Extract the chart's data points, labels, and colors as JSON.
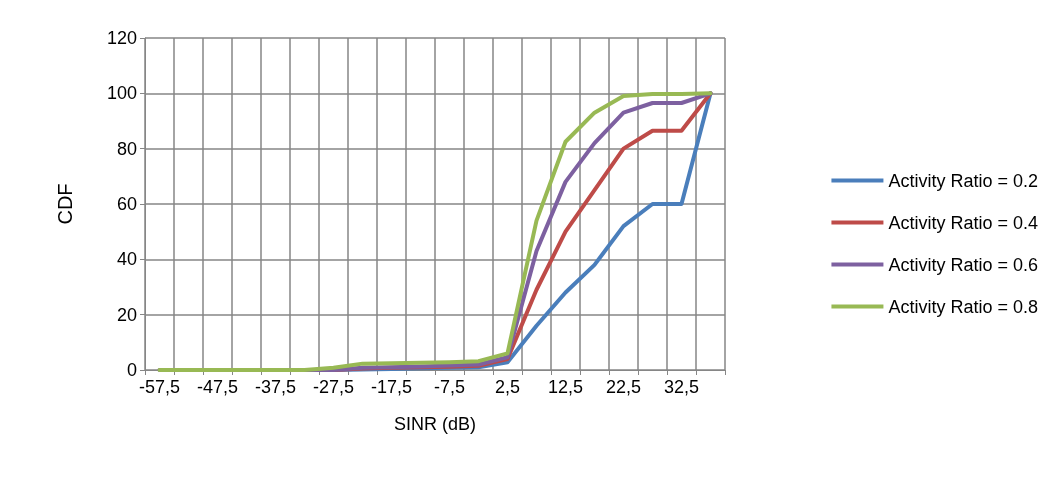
{
  "chart_data": {
    "type": "line",
    "xlabel": "SINR (dB)",
    "ylabel": "CDF",
    "categories": [
      "-57,5",
      null,
      "-47,5",
      null,
      "-37,5",
      null,
      "-27,5",
      null,
      "-17,5",
      null,
      "-7,5",
      null,
      "2,5",
      null,
      "12,5",
      null,
      "22,5",
      null,
      "32,5",
      null
    ],
    "series": [
      {
        "name": "Activity Ratio = 0.2",
        "color": "#4a7ebb",
        "values": [
          null,
          null,
          null,
          null,
          null,
          0,
          0,
          0.2,
          0.4,
          0.6,
          0.8,
          1,
          2.8,
          16,
          28,
          38,
          52,
          60,
          60,
          100
        ]
      },
      {
        "name": "Activity Ratio = 0.4",
        "color": "#be4b48",
        "values": [
          null,
          null,
          null,
          null,
          null,
          null,
          0,
          0.5,
          0.8,
          1,
          1.2,
          1.5,
          4,
          29,
          50,
          65,
          80,
          86.5,
          86.5,
          100
        ]
      },
      {
        "name": "Activity Ratio = 0.6",
        "color": "#7d60a0",
        "values": [
          0,
          0,
          0,
          0,
          0,
          0,
          0,
          0.8,
          1,
          1.3,
          1.6,
          2,
          4.6,
          43,
          68,
          82,
          93,
          96.5,
          96.5,
          100
        ]
      },
      {
        "name": "Activity Ratio = 0.8",
        "color": "#98b954",
        "values": [
          0,
          0,
          0,
          0,
          0,
          0,
          0.8,
          2.3,
          2.4,
          2.6,
          2.8,
          3.2,
          6,
          54,
          82.5,
          93,
          99,
          99.8,
          99.8,
          100
        ]
      }
    ],
    "ylim": [
      0,
      120
    ],
    "yticks": [
      0,
      20,
      40,
      60,
      80,
      100,
      120
    ],
    "grid": true,
    "legend": "right",
    "marker": "none",
    "line_style": "solid"
  }
}
